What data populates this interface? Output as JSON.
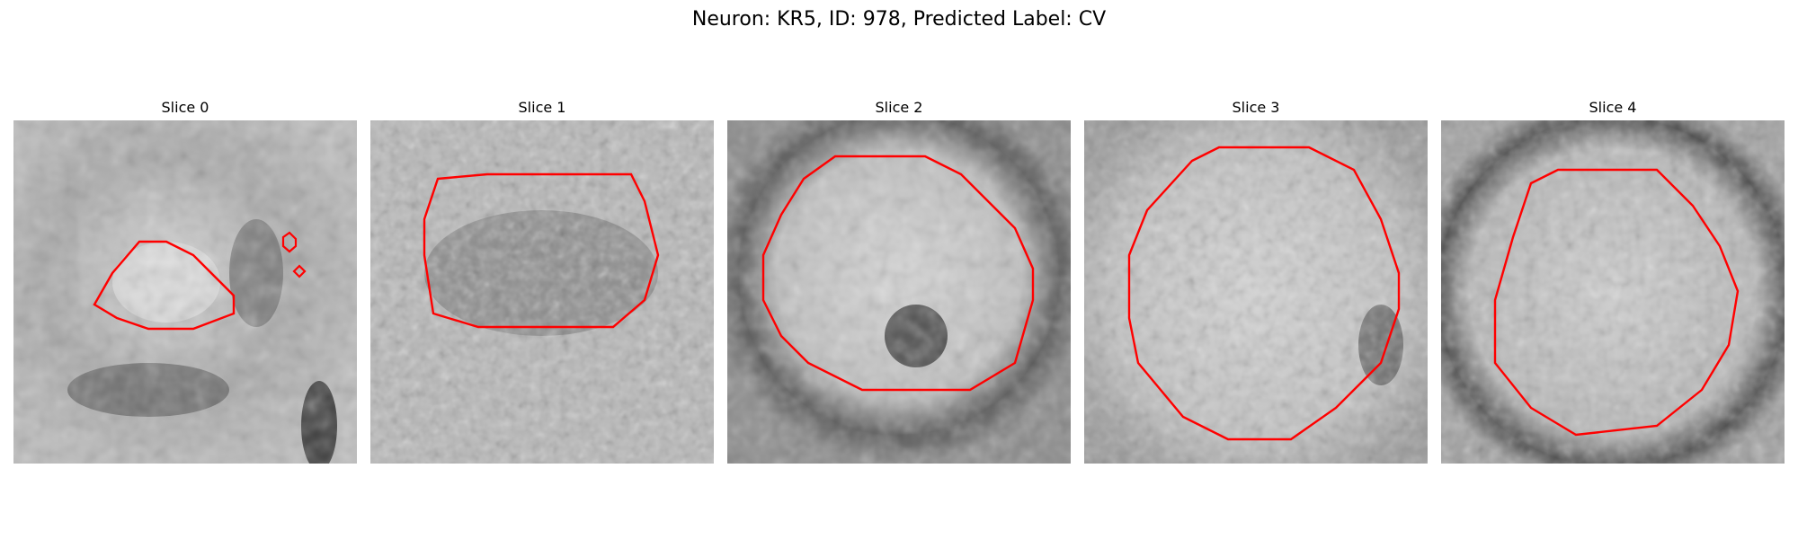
{
  "figure": {
    "title": "Neuron: KR5, ID: 978, Predicted Label: CV"
  },
  "colors": {
    "contour": "#ff0000",
    "background": "#ffffff"
  },
  "slices": [
    {
      "label": "Slice 0"
    },
    {
      "label": "Slice 1"
    },
    {
      "label": "Slice 2"
    },
    {
      "label": "Slice 3"
    },
    {
      "label": "Slice 4"
    }
  ]
}
